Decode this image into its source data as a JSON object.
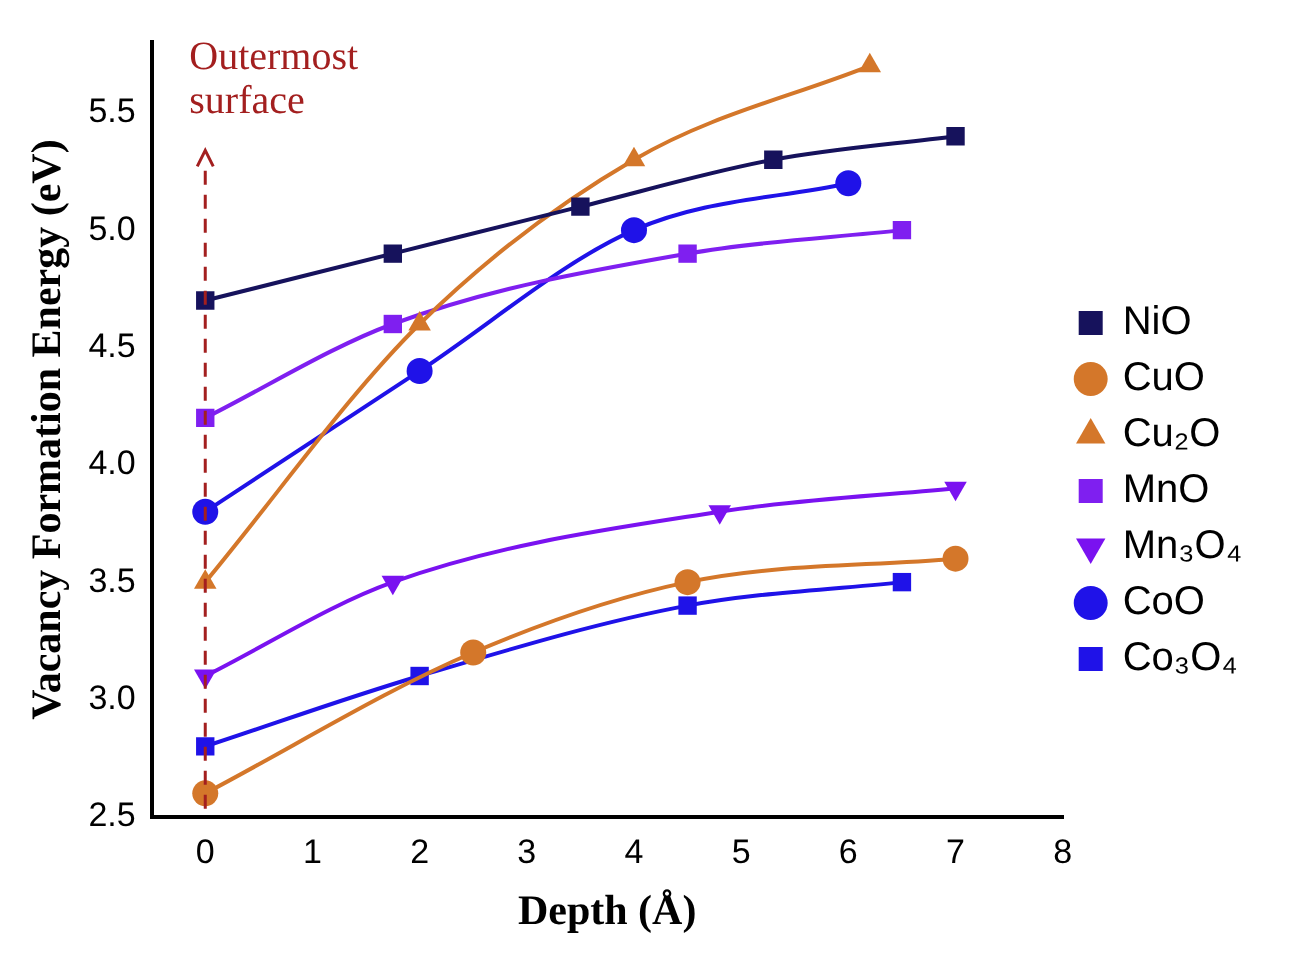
{
  "chart_data": {
    "type": "line",
    "xlabel": "Depth (Å)",
    "ylabel": "Vacancy Formation Energy (eV)",
    "xlim": [
      -0.5,
      8
    ],
    "xticks": [
      0,
      1,
      2,
      3,
      4,
      5,
      6,
      7,
      8
    ],
    "ylim": [
      2.5,
      5.8
    ],
    "yticks": [
      2.5,
      {
        "value": 3,
        "label": "3.0"
      },
      3.5,
      {
        "value": 4,
        "label": "4.0"
      },
      4.5,
      {
        "value": 5,
        "label": "5.0"
      },
      5.5
    ],
    "grid": false,
    "legend": "right",
    "line_style": "solid",
    "ref_lines": [
      {
        "axis": "x",
        "value": 0,
        "label": "Outermost surface",
        "color": "#a31f1f",
        "line_style": "dashed"
      }
    ],
    "series": [
      {
        "name": "NiO",
        "color": "#16125c",
        "marker": "square",
        "x": [
          0,
          1.75,
          3.5,
          5.3,
          7
        ],
        "values": [
          4.7,
          4.9,
          5.1,
          5.3,
          5.4
        ]
      },
      {
        "name": "CuO",
        "color": "#d4772a",
        "marker": "circle",
        "x": [
          0,
          2.5,
          4.5,
          7
        ],
        "values": [
          2.6,
          3.2,
          3.5,
          3.6
        ]
      },
      {
        "name": "Cu₂O",
        "color": "#d4772a",
        "marker": "triangle",
        "x": [
          0,
          2,
          4,
          6.2
        ],
        "values": [
          3.5,
          4.6,
          5.3,
          5.7
        ]
      },
      {
        "name": "MnO",
        "color": "#7f1ff0",
        "marker": "square",
        "x": [
          0,
          1.75,
          4.5,
          6.5
        ],
        "values": [
          4.2,
          4.6,
          4.9,
          5.0
        ]
      },
      {
        "name": "Mn₃O₄",
        "color": "#7a12f0",
        "marker": "triangle-down",
        "x": [
          0,
          1.75,
          4.8,
          7
        ],
        "values": [
          3.1,
          3.5,
          3.8,
          3.9
        ]
      },
      {
        "name": "CoO",
        "color": "#1f12e8",
        "marker": "circle",
        "x": [
          0,
          2,
          4,
          6
        ],
        "values": [
          3.8,
          4.4,
          5.0,
          5.2
        ]
      },
      {
        "name": "Co₃O₄",
        "color": "#1f12e8",
        "marker": "square",
        "x": [
          0,
          2,
          4.5,
          6.5
        ],
        "values": [
          2.8,
          3.1,
          3.4,
          3.5
        ]
      }
    ]
  }
}
